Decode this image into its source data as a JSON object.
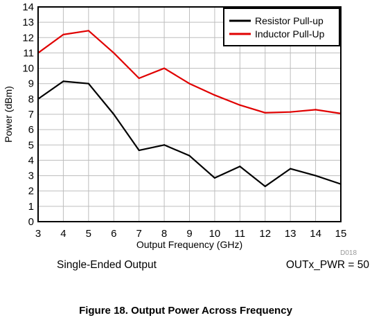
{
  "chart_data": {
    "type": "line",
    "xlabel": "Output Frequency (GHz)",
    "ylabel": "Power (dBm)",
    "xlim": [
      3,
      15
    ],
    "ylim": [
      0,
      14
    ],
    "xticks": [
      "3",
      "4",
      "5",
      "6",
      "7",
      "8",
      "9",
      "10",
      "11",
      "12",
      "13",
      "14",
      "15"
    ],
    "yticks": [
      "0",
      "1",
      "2",
      "3",
      "4",
      "5",
      "6",
      "7",
      "8",
      "9",
      "10",
      "11",
      "12",
      "13",
      "14"
    ],
    "grid": true,
    "legend_position": "top-right",
    "x": [
      3,
      4,
      5,
      6,
      7,
      8,
      9,
      10,
      11,
      12,
      13,
      14,
      15
    ],
    "series": [
      {
        "name": "Resistor Pull-up",
        "color": "#000000",
        "values": [
          8.0,
          9.15,
          9.0,
          7.0,
          4.65,
          5.0,
          4.3,
          2.85,
          3.6,
          2.3,
          3.45,
          3.0,
          2.45
        ]
      },
      {
        "name": "Inductor Pull-Up",
        "color": "#e00000",
        "values": [
          11.0,
          12.2,
          12.45,
          11.0,
          9.35,
          10.0,
          9.0,
          8.25,
          7.6,
          7.1,
          7.15,
          7.3,
          7.05
        ]
      }
    ]
  },
  "figure_code": "D018",
  "notes": {
    "left": "Single-Ended Output",
    "right": "OUTx_PWR = 50"
  },
  "caption": "Figure 18. Output Power Across Frequency"
}
